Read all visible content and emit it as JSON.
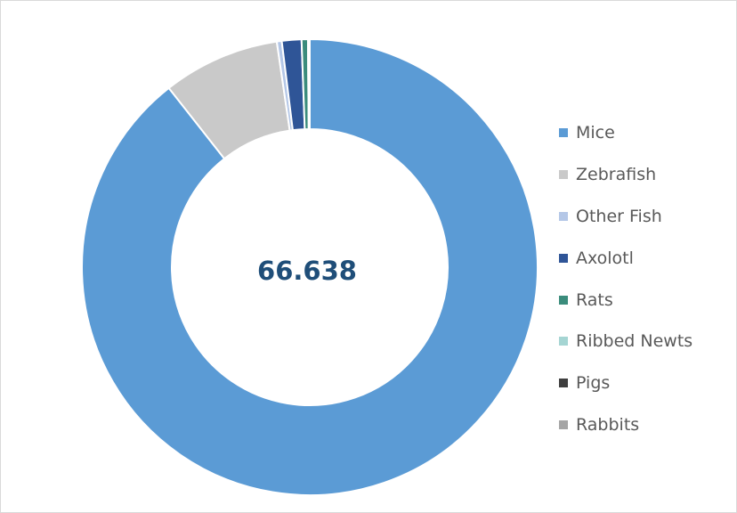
{
  "chart_data": {
    "type": "pie",
    "style": "donut",
    "center_label": "66.638",
    "categories": [
      "Mice",
      "Zebrafish",
      "Other Fish",
      "Axolotl",
      "Rats",
      "Ribbed Newts",
      "Pigs",
      "Rabbits"
    ],
    "values": [
      59566,
      5531,
      233,
      925,
      299,
      60,
      16,
      8
    ],
    "colors": [
      "#5b9bd5",
      "#c9c9c9",
      "#b4c7e7",
      "#2f5597",
      "#3b8c7c",
      "#a5d5d3",
      "#3f3f3f",
      "#a5a5a5"
    ],
    "legend_position": "right"
  }
}
